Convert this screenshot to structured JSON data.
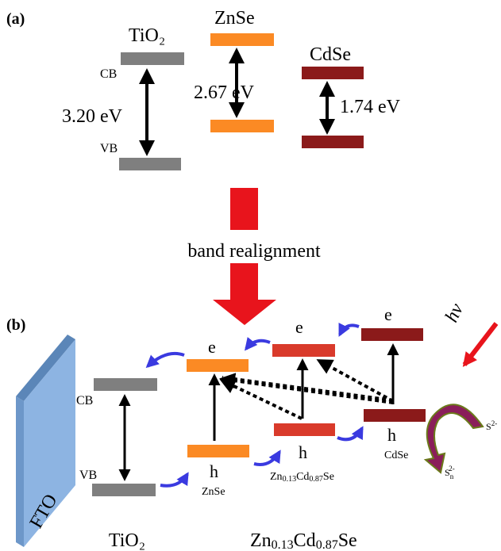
{
  "panel_a": {
    "label": "(a)",
    "cb": "CB",
    "vb": "VB",
    "materials": [
      {
        "name": "TiO₂",
        "gap": "3.20 eV"
      },
      {
        "name": "ZnSe",
        "gap": "2.67 eV"
      },
      {
        "name": "CdSe",
        "gap": "1.74 eV"
      }
    ]
  },
  "transition": "band realignment",
  "panel_b": {
    "label": "(b)",
    "electrode": "FTO",
    "cb": "CB",
    "vb": "VB",
    "znse": {
      "e": "e",
      "h": "h",
      "name": "ZnSe"
    },
    "alloy": {
      "e": "e",
      "h": "h",
      "name": [
        "Zn",
        "0.13",
        "Cd",
        "0.87",
        "Se"
      ]
    },
    "cdse": {
      "e": "e",
      "h": "h",
      "name": "CdSe"
    },
    "light": "hν",
    "sulfide": [
      "S",
      "2-"
    ],
    "polysulfide": [
      "S",
      "n",
      "2-"
    ],
    "bottom_labels": {
      "left": "TiO₂",
      "right": [
        "Zn",
        "0.13",
        "Cd",
        "0.87",
        "Se"
      ]
    }
  }
}
